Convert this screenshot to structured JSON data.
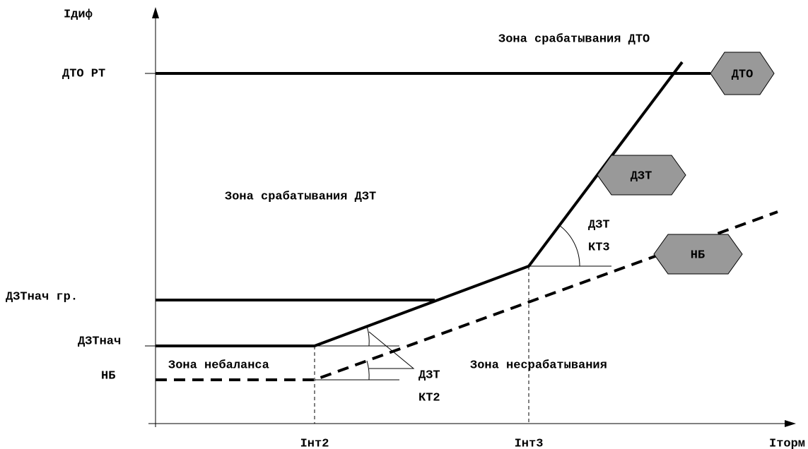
{
  "axes": {
    "y_label": "Iдиф",
    "x_label": "Iторм"
  },
  "levels": {
    "dto_rt": "ДТО РТ",
    "dzt_nach_gr": "ДЗТнач гр.",
    "dzt_nach": "ДЗТнач",
    "nb": "НБ"
  },
  "breakpoints": {
    "int2": "Iнт2",
    "int3": "Iнт3"
  },
  "zones": {
    "dto_operate": "Зона срабатывания ДТО",
    "dzt_operate": "Зона срабатывания ДЗТ",
    "imbalance": "Зона небаланса",
    "non_operate": "Зона несрабатывания"
  },
  "tags": {
    "dto": "ДТО",
    "dzt": "ДЗТ",
    "nb": "НБ"
  },
  "slopes": {
    "kt3": [
      "ДЗТ",
      "КТ3"
    ],
    "kt2": [
      "ДЗТ",
      "КТ2"
    ]
  }
}
